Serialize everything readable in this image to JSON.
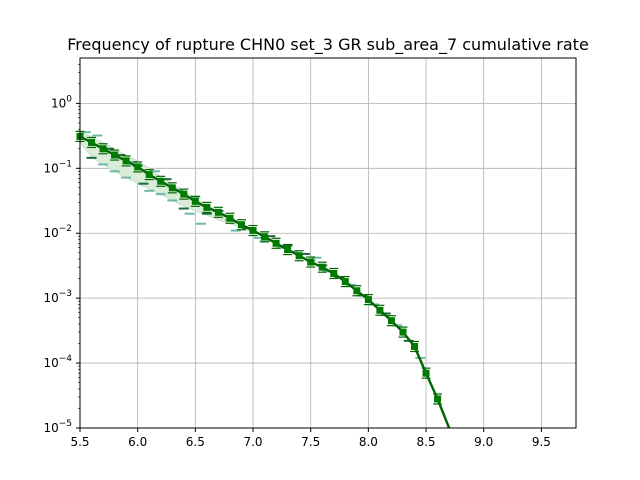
{
  "chart_data": {
    "type": "line",
    "title": "Frequency of rupture CHN0 set_3 GR sub_area_7 cumulative rate",
    "xlabel": "",
    "ylabel": "",
    "xlim": [
      5.5,
      9.8
    ],
    "ylim": [
      1e-05,
      5
    ],
    "yscale": "log",
    "grid": true,
    "x_ticks": [
      5.5,
      6.0,
      6.5,
      7.0,
      7.5,
      8.0,
      8.5,
      9.0,
      9.5
    ],
    "x_tick_labels": [
      "5.5",
      "6.0",
      "6.5",
      "7.0",
      "7.5",
      "8.0",
      "8.5",
      "9.0",
      "9.5"
    ],
    "y_ticks": [
      1e-05,
      0.0001,
      0.001,
      0.01,
      0.1,
      1
    ],
    "y_tick_labels": [
      {
        "base": "10",
        "exp": "−5"
      },
      {
        "base": "10",
        "exp": "−4"
      },
      {
        "base": "10",
        "exp": "−3"
      },
      {
        "base": "10",
        "exp": "−2"
      },
      {
        "base": "10",
        "exp": "−1"
      },
      {
        "base": "10",
        "exp": "0"
      }
    ],
    "colors": {
      "main_line": "#006400",
      "marker": "#007a00",
      "band_fill": "#d8ecd8",
      "dash_dark": "#1a6b3a",
      "dash_light": "#6fb8a8"
    },
    "series": [
      {
        "x": [
          5.5,
          5.6,
          5.7,
          5.8,
          5.9,
          6.0,
          6.1,
          6.2,
          6.3,
          6.4,
          6.5,
          6.6,
          6.7,
          6.8,
          6.9,
          7.0,
          7.1,
          7.2,
          7.3,
          7.4,
          7.5,
          7.6,
          7.7,
          7.8,
          7.9,
          8.0,
          8.1,
          8.2,
          8.3,
          8.4,
          8.5,
          8.6,
          8.7
        ],
        "values": [
          0.31,
          0.25,
          0.2,
          0.16,
          0.13,
          0.105,
          0.08,
          0.063,
          0.05,
          0.04,
          0.031,
          0.025,
          0.021,
          0.017,
          0.0135,
          0.011,
          0.0088,
          0.007,
          0.0056,
          0.0045,
          0.0036,
          0.003,
          0.0024,
          0.0018,
          0.0013,
          0.00095,
          0.00065,
          0.00045,
          0.0003,
          0.00018,
          7e-05,
          2.8e-05,
          1e-05
        ]
      }
    ],
    "band": {
      "x": [
        5.5,
        5.6,
        5.7,
        5.8,
        5.9,
        6.0,
        6.1,
        6.2,
        6.3,
        6.4,
        6.5,
        6.6,
        6.7,
        6.8,
        6.9,
        7.0
      ],
      "upper": [
        0.36,
        0.31,
        0.25,
        0.2,
        0.16,
        0.13,
        0.1,
        0.075,
        0.058,
        0.045,
        0.035,
        0.027,
        0.022,
        0.018,
        0.014,
        0.0115
      ],
      "lower": [
        0.25,
        0.15,
        0.115,
        0.09,
        0.072,
        0.058,
        0.048,
        0.04,
        0.032,
        0.026,
        0.022,
        0.019,
        0.016,
        0.014,
        0.012,
        0.0102
      ]
    },
    "dashes": [
      {
        "x": 5.55,
        "y": 0.36,
        "tone": "light"
      },
      {
        "x": 5.6,
        "y": 0.145,
        "tone": "dark"
      },
      {
        "x": 5.65,
        "y": 0.32,
        "tone": "light"
      },
      {
        "x": 5.7,
        "y": 0.115,
        "tone": "light"
      },
      {
        "x": 5.75,
        "y": 0.2,
        "tone": "dark"
      },
      {
        "x": 5.8,
        "y": 0.09,
        "tone": "light"
      },
      {
        "x": 5.85,
        "y": 0.16,
        "tone": "dark"
      },
      {
        "x": 5.9,
        "y": 0.072,
        "tone": "light"
      },
      {
        "x": 5.95,
        "y": 0.125,
        "tone": "light"
      },
      {
        "x": 6.0,
        "y": 0.11,
        "tone": "dark"
      },
      {
        "x": 6.05,
        "y": 0.058,
        "tone": "dark"
      },
      {
        "x": 6.1,
        "y": 0.045,
        "tone": "light"
      },
      {
        "x": 6.15,
        "y": 0.09,
        "tone": "light"
      },
      {
        "x": 6.2,
        "y": 0.04,
        "tone": "light"
      },
      {
        "x": 6.25,
        "y": 0.068,
        "tone": "dark"
      },
      {
        "x": 6.3,
        "y": 0.032,
        "tone": "light"
      },
      {
        "x": 6.35,
        "y": 0.046,
        "tone": "light"
      },
      {
        "x": 6.4,
        "y": 0.024,
        "tone": "dark"
      },
      {
        "x": 6.45,
        "y": 0.02,
        "tone": "light"
      },
      {
        "x": 6.5,
        "y": 0.036,
        "tone": "light"
      },
      {
        "x": 6.55,
        "y": 0.014,
        "tone": "light"
      },
      {
        "x": 6.6,
        "y": 0.02,
        "tone": "dark"
      },
      {
        "x": 6.7,
        "y": 0.022,
        "tone": "dark"
      },
      {
        "x": 6.8,
        "y": 0.016,
        "tone": "light"
      },
      {
        "x": 6.85,
        "y": 0.011,
        "tone": "light"
      },
      {
        "x": 6.95,
        "y": 0.012,
        "tone": "dark"
      },
      {
        "x": 7.05,
        "y": 0.0085,
        "tone": "light"
      },
      {
        "x": 7.1,
        "y": 0.0075,
        "tone": "light"
      },
      {
        "x": 7.15,
        "y": 0.009,
        "tone": "dark"
      },
      {
        "x": 7.25,
        "y": 0.006,
        "tone": "light"
      },
      {
        "x": 7.3,
        "y": 0.0065,
        "tone": "dark"
      },
      {
        "x": 7.35,
        "y": 0.0052,
        "tone": "light"
      },
      {
        "x": 7.45,
        "y": 0.0048,
        "tone": "dark"
      },
      {
        "x": 7.5,
        "y": 0.0038,
        "tone": "light"
      },
      {
        "x": 7.55,
        "y": 0.0042,
        "tone": "light"
      },
      {
        "x": 7.6,
        "y": 0.0032,
        "tone": "dark"
      },
      {
        "x": 7.65,
        "y": 0.0026,
        "tone": "light"
      },
      {
        "x": 7.75,
        "y": 0.0021,
        "tone": "dark"
      },
      {
        "x": 7.85,
        "y": 0.0016,
        "tone": "light"
      },
      {
        "x": 7.95,
        "y": 0.0011,
        "tone": "dark"
      },
      {
        "x": 8.05,
        "y": 0.0008,
        "tone": "light"
      },
      {
        "x": 8.15,
        "y": 0.00058,
        "tone": "dark"
      },
      {
        "x": 8.25,
        "y": 0.00038,
        "tone": "light"
      },
      {
        "x": 8.35,
        "y": 0.00022,
        "tone": "dark"
      },
      {
        "x": 8.45,
        "y": 0.00012,
        "tone": "light"
      }
    ]
  }
}
